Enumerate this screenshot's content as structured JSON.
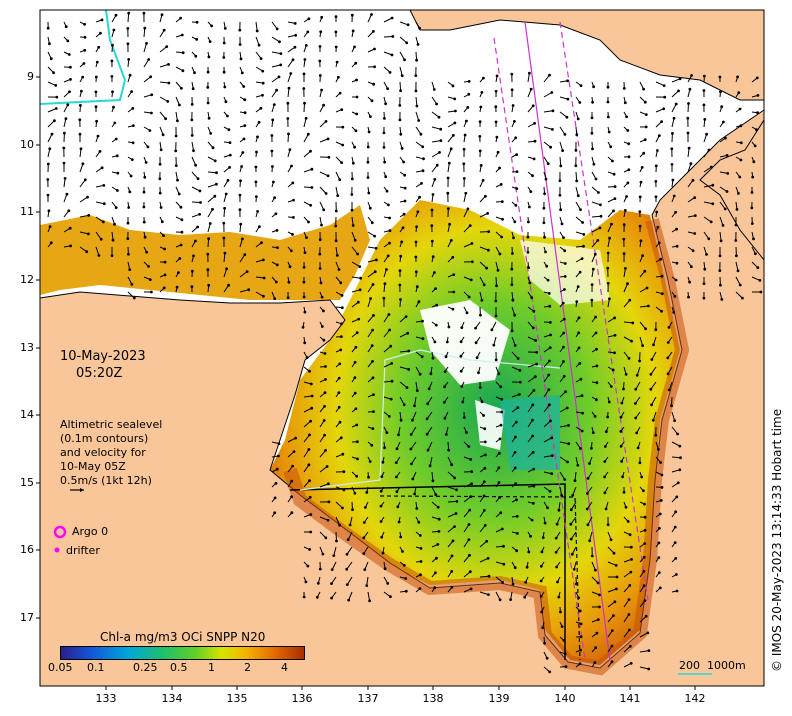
{
  "map": {
    "date": "10-May-2023",
    "time": "05:20Z",
    "legend_text": [
      "Altimetric sealevel",
      "(0.1m contours)",
      "and velocity for",
      "10-May 05Z",
      "0.5m/s (1kt 12h)"
    ],
    "argo_label": "Argo 0",
    "drifter_label": "drifter",
    "colorbar_title": "Chl-a mg/m3 OCi SNPP N20",
    "colorbar_ticks": [
      "0.05",
      "0.1",
      "0.25",
      "0.5",
      "1",
      "2",
      "4"
    ],
    "scale_label": "200  1000m",
    "credit": "© IMOS 20-May-2023 13:14:33 Hobart time",
    "lat_ticks": [
      "9",
      "10",
      "11",
      "12",
      "13",
      "14",
      "15",
      "16",
      "17"
    ],
    "lon_ticks": [
      "133",
      "134",
      "135",
      "136",
      "137",
      "138",
      "139",
      "140",
      "141",
      "142"
    ],
    "colors": {
      "land": "#f9c69a",
      "high_chl": "#d04d00",
      "low_chl": "#1faa36",
      "argo": "#ff00ff",
      "drifter_track": "#cc33cc",
      "contour": "#2bd6d6"
    }
  }
}
